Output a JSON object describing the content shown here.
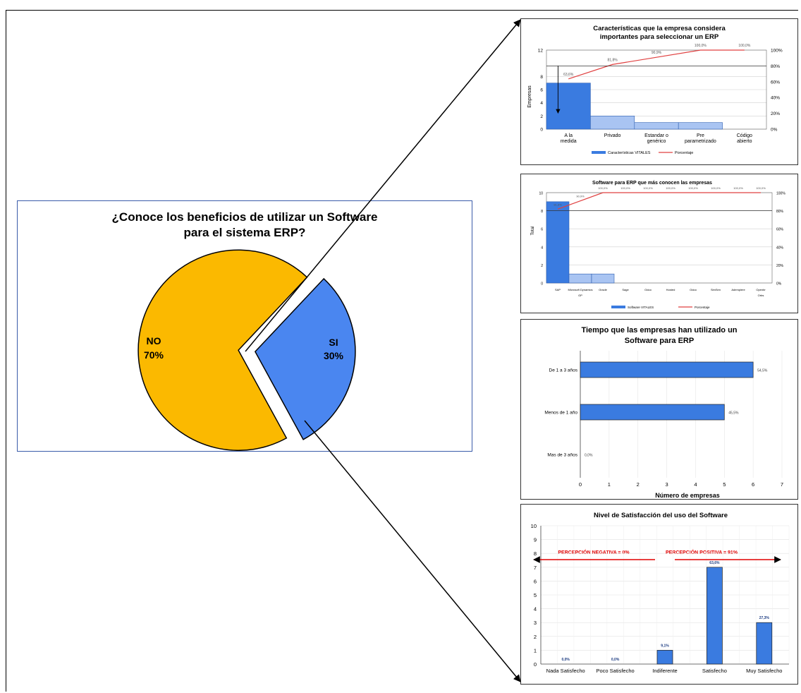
{
  "pie_chart": {
    "title_line1": "¿Conoce los beneficios de utilizar un Software",
    "title_line2": "para el sistema ERP?",
    "colors": {
      "no": "#FBB900",
      "si": "#4A86F0"
    }
  },
  "chart_data": [
    {
      "type": "pie",
      "title": "¿Conoce los beneficios de utilizar un Software para el sistema ERP?",
      "slices": [
        {
          "label": "NO",
          "value": 70,
          "display": "70%"
        },
        {
          "label": "SI",
          "value": 30,
          "display": "30%"
        }
      ]
    },
    {
      "type": "bar",
      "subtype": "pareto",
      "title_line1": "Características que la empresa considera",
      "title_line2": "importantes para seleccionar un ERP",
      "ylabel": "Empresas",
      "ylim": [
        0,
        12
      ],
      "yticks": [
        "0",
        "2",
        "4",
        "6",
        "8",
        "12"
      ],
      "y2ticks": [
        "0%",
        "20%",
        "40%",
        "60%",
        "80%",
        "100%"
      ],
      "categories": [
        "A la medida",
        "Privado",
        "Estandar o genérico",
        "Pre parametrizado",
        "Código abierto"
      ],
      "values": [
        7,
        2,
        1,
        1,
        0
      ],
      "cumulative_pct": [
        63.6,
        81.8,
        90.9,
        100,
        100
      ],
      "cumulative_labels": [
        "63,6%",
        "81,8%",
        "90,9%",
        "100,0%",
        "100,0%"
      ],
      "legend": [
        "Características VITALES",
        "Porcentaje"
      ]
    },
    {
      "type": "bar",
      "subtype": "pareto",
      "title": "Software para ERP que más conocen las empresas",
      "ylabel": "Total",
      "ylim": [
        0,
        10
      ],
      "yticks": [
        "0",
        "2",
        "4",
        "6",
        "8",
        "10"
      ],
      "y2ticks": [
        "0%",
        "20%",
        "40%",
        "60%",
        "80%",
        "100%"
      ],
      "categories": [
        "SAP",
        "Microsoft Dynamics GP",
        "Oracle",
        "Sage",
        "Odoo",
        "Hosted",
        "Odoo",
        "SimSen",
        "Adempiere",
        "Openbr Orbs"
      ],
      "values": [
        9,
        1,
        1,
        0,
        0,
        0,
        0,
        0,
        0,
        0
      ],
      "cumulative_pct": [
        81.8,
        90.9,
        100,
        100,
        100,
        100,
        100,
        100,
        100,
        100
      ],
      "cumulative_labels": [
        "81,8%",
        "90,9%",
        "100,0%",
        "100,0%",
        "100,0%",
        "100,0%",
        "100,0%",
        "100,0%",
        "100,0%",
        "100,0%"
      ],
      "legend": [
        "Software VITALES",
        "Porcentaje"
      ]
    },
    {
      "type": "bar",
      "orientation": "horizontal",
      "title_line1": "Tiempo que las empresas han utilizado un",
      "title_line2": "Software para ERP",
      "xlabel": "Número de empresas",
      "xlim": [
        0,
        7
      ],
      "xticks": [
        "0",
        "1",
        "2",
        "3",
        "4",
        "5",
        "6",
        "7"
      ],
      "categories": [
        "De 1 a 3 años",
        "Menos de 1 año",
        "Mas de 3 años"
      ],
      "values": [
        6,
        5,
        0
      ],
      "value_labels": [
        "54,5%",
        "45,5%",
        "0,0%"
      ]
    },
    {
      "type": "bar",
      "title": "Nivel de Satisfacción del uso del Software",
      "ylim": [
        0,
        10
      ],
      "yticks": [
        "0",
        "1",
        "2",
        "3",
        "4",
        "5",
        "6",
        "7",
        "8",
        "9",
        "10"
      ],
      "categories": [
        "Nada Satisfecho",
        "Poco Satisfecho",
        "Indiferente",
        "Satisfecho",
        "Muy Satisfecho"
      ],
      "values": [
        0,
        0,
        1,
        7,
        3
      ],
      "value_labels": [
        "0,0%",
        "0,0%",
        "9,1%",
        "63,6%",
        "27,3%"
      ],
      "annotations": {
        "negative": "PERCEPCIÓN NEGATIVA = 0%",
        "positive": "PERCEPCIÓN POSITIVA = 91%"
      }
    }
  ]
}
